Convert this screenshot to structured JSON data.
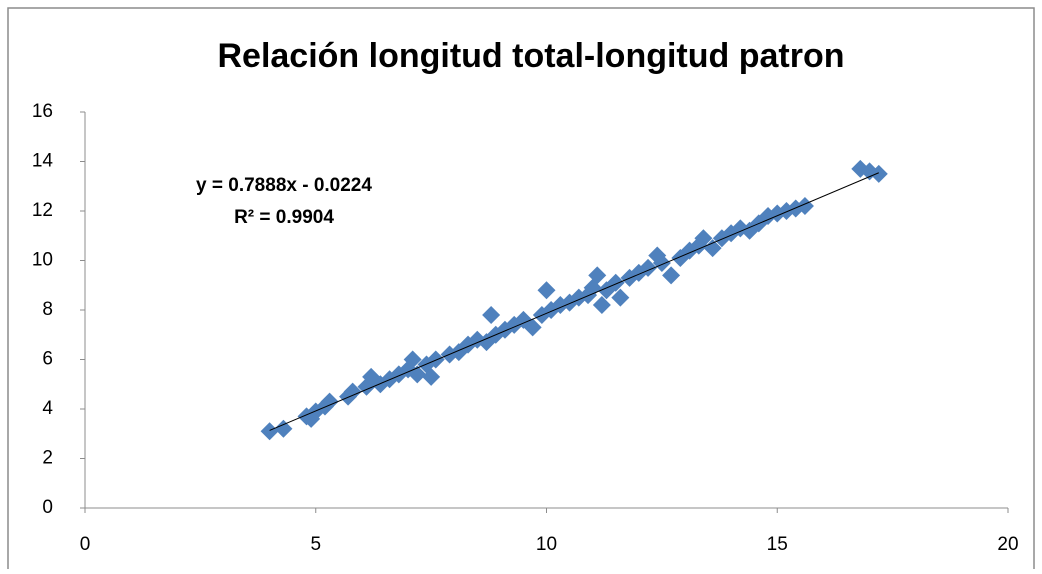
{
  "chart_data": {
    "type": "scatter",
    "title": "Relación longitud total-longitud patron",
    "annotations": [
      "y = 0.7888x - 0.0224",
      "R² = 0.9904"
    ],
    "series": [
      {
        "color": "#4F81BD",
        "x": [
          4.0,
          4.3,
          4.8,
          4.9,
          5.0,
          5.2,
          5.3,
          5.7,
          5.8,
          6.1,
          6.2,
          6.4,
          6.6,
          6.8,
          7.0,
          7.1,
          7.2,
          7.4,
          7.5,
          7.6,
          7.9,
          8.1,
          8.3,
          8.5,
          8.7,
          8.8,
          8.9,
          9.1,
          9.3,
          9.5,
          9.7,
          9.9,
          10.0,
          10.1,
          10.3,
          10.5,
          10.7,
          10.9,
          11.0,
          11.1,
          11.2,
          11.3,
          11.5,
          11.6,
          11.8,
          12.0,
          12.2,
          12.4,
          12.5,
          12.7,
          12.9,
          13.1,
          13.3,
          13.4,
          13.6,
          13.8,
          14.0,
          14.2,
          14.4,
          14.6,
          14.8,
          15.0,
          15.2,
          15.4,
          15.6,
          16.8,
          17.0,
          17.2
        ],
        "y": [
          3.1,
          3.2,
          3.7,
          3.6,
          3.9,
          4.1,
          4.3,
          4.5,
          4.7,
          4.9,
          5.3,
          5.0,
          5.2,
          5.4,
          5.6,
          6.0,
          5.4,
          5.8,
          5.3,
          6.0,
          6.2,
          6.3,
          6.6,
          6.8,
          6.7,
          7.8,
          7.0,
          7.2,
          7.4,
          7.6,
          7.3,
          7.8,
          8.8,
          8.0,
          8.2,
          8.3,
          8.5,
          8.6,
          8.9,
          9.4,
          8.2,
          8.8,
          9.1,
          8.5,
          9.3,
          9.5,
          9.7,
          10.2,
          9.9,
          9.4,
          10.1,
          10.4,
          10.6,
          10.9,
          10.5,
          10.9,
          11.1,
          11.3,
          11.2,
          11.5,
          11.8,
          11.9,
          12.0,
          12.1,
          12.2,
          13.7,
          13.6,
          13.5
        ]
      }
    ],
    "trendline": {
      "slope": 0.7888,
      "intercept": -0.0224,
      "color": "#000000"
    },
    "xlim": [
      0,
      20
    ],
    "xticks": [
      0,
      5,
      10,
      15,
      20
    ],
    "ylim": [
      0,
      16
    ],
    "yticks": [
      0,
      2,
      4,
      6,
      8,
      10,
      12,
      14,
      16
    ],
    "grid": false
  }
}
